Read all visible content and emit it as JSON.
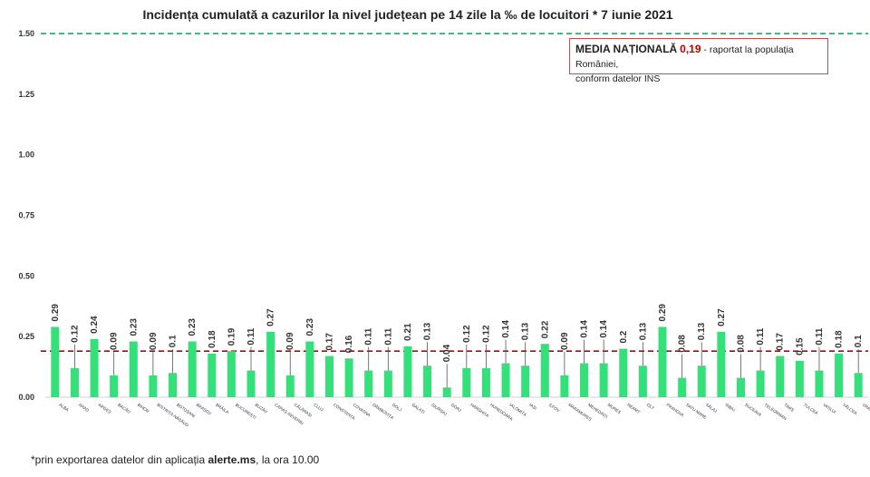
{
  "chart_data": {
    "type": "bar",
    "title": "Incidența cumulată a cazurilor la nivel județean pe 14 zile la ‰ de locuitori *  7 iunie 2021",
    "categories": [
      "ALBA",
      "ARAD",
      "ARGEȘ",
      "BACĂU",
      "BIHOR",
      "BISTRIȚA-NĂSĂUD",
      "BOTOȘANI",
      "BRAȘOV",
      "BRĂILA",
      "BUCUREȘTI",
      "BUZĂU",
      "CARAȘ-SEVERIN",
      "CĂLĂRAȘI",
      "CLUJ",
      "CONSTANȚA",
      "COVASNA",
      "DÂMBOVIȚA",
      "DOLJ",
      "GALAȚI",
      "GIURGIU",
      "GORJ",
      "HARGHITA",
      "HUNEDOARA",
      "IALOMIȚA",
      "IAȘI",
      "ILFOV",
      "MARAMUREȘ",
      "MEHEDINȚI",
      "MUREȘ",
      "NEAMȚ",
      "OLT",
      "PRAHOVA",
      "SATU MARE",
      "SĂLAJ",
      "SIBIU",
      "SUCEAVA",
      "TELEORMAN",
      "TIMIȘ",
      "TULCEA",
      "VASLUI",
      "VÂLCEA",
      "VRANCEA"
    ],
    "values": [
      0.29,
      0.12,
      0.24,
      0.09,
      0.23,
      0.09,
      0.1,
      0.23,
      0.18,
      0.19,
      0.11,
      0.27,
      0.09,
      0.23,
      0.17,
      0.16,
      0.11,
      0.11,
      0.21,
      0.13,
      0.04,
      0.12,
      0.12,
      0.14,
      0.13,
      0.22,
      0.09,
      0.14,
      0.14,
      0.2,
      0.13,
      0.29,
      0.08,
      0.13,
      0.27,
      0.08,
      0.11,
      0.17,
      0.15,
      0.11,
      0.18,
      0.1
    ],
    "value_labels": [
      "0.29",
      "0.12",
      "0.24",
      "0.09",
      "0.23",
      "0.09",
      "0.1",
      "0.23",
      "0.18",
      "0.19",
      "0.11",
      "0.27",
      "0.09",
      "0.23",
      "0.17",
      "0.16",
      "0.11",
      "0.11",
      "0.21",
      "0.13",
      "0.04",
      "0.12",
      "0.12",
      "0.14",
      "0.13",
      "0.22",
      "0.09",
      "0.14",
      "0.14",
      "0.2",
      "0.13",
      "0.29",
      "0.08",
      "0.13",
      "0.27",
      "0.08",
      "0.11",
      "0.17",
      "0.15",
      "0.11",
      "0.18",
      "0.1"
    ],
    "ylim": [
      0,
      1.5
    ],
    "yticks": [
      "0.00",
      "0.25",
      "0.50",
      "0.75",
      "1.00",
      "1.25",
      "1.50"
    ],
    "ytick_values": [
      0,
      0.25,
      0.5,
      0.75,
      1.0,
      1.25,
      1.5
    ],
    "reference_lines": [
      {
        "value": 1.5,
        "style": "dashed",
        "color": "#00a550"
      },
      {
        "value": 0.19,
        "style": "dashed",
        "color": "#c00000"
      }
    ],
    "bar_color": "#33e07a",
    "grid": false
  },
  "legend": {
    "heading": "MEDIA NAȚIONALĂ",
    "value": "0,19",
    "text1": " - raportat la populația României,",
    "text2": "conform datelor INS"
  },
  "footnote": {
    "prefix": "*prin exportarea datelor din aplicația ",
    "app": "alerte.ms",
    "suffix": ", la ora 10.00"
  }
}
